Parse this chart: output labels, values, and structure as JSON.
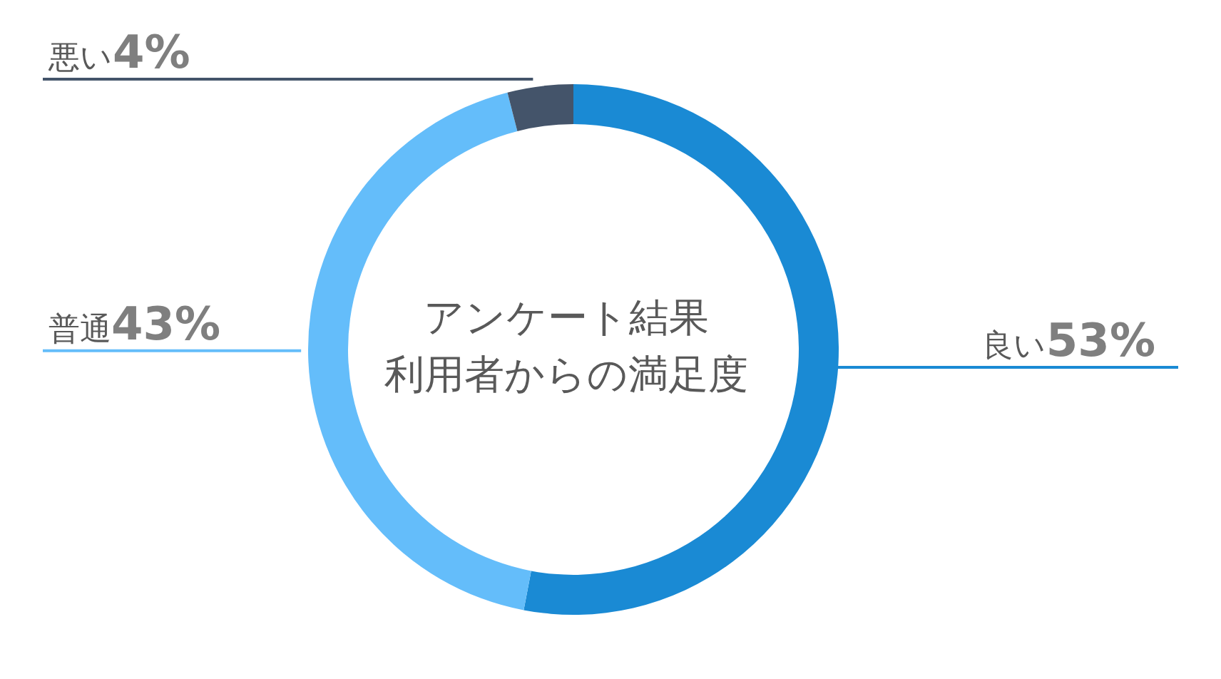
{
  "chart_data": {
    "type": "donut",
    "title": "アンケート結果",
    "subtitle": "利用者からの満足度",
    "categories": [
      "良い",
      "普通",
      "悪い"
    ],
    "values": [
      53,
      43,
      4
    ],
    "value_labels": [
      "53%",
      "43%",
      "4%"
    ],
    "colors": [
      "#1a8ad4",
      "#64bdfa",
      "#44546a"
    ]
  }
}
